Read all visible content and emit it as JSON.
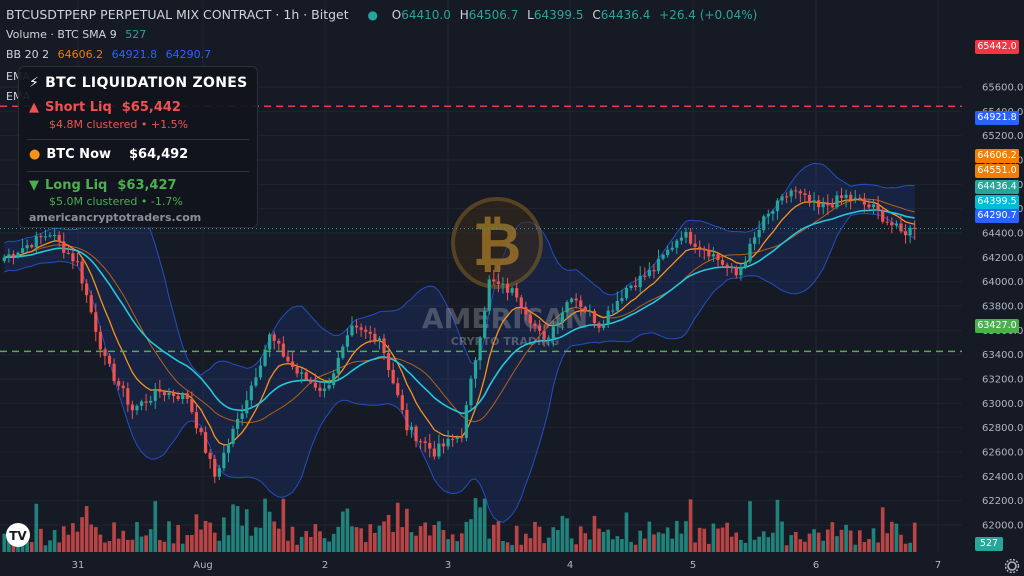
{
  "header": {
    "symbol": "BTCUSDTPERP PERPETUAL MIX CONTRACT · 1h · Bitget",
    "ohlc": {
      "o_label": "O",
      "o": "64410.0",
      "h_label": "H",
      "h": "64506.7",
      "l_label": "L",
      "l": "64399.5",
      "c_label": "C",
      "c": "64436.4",
      "chg": "+26.4 (+0.04%)"
    },
    "volume_label": "Volume · BTC  SMA 9",
    "volume_value": "527",
    "bb_label": "BB 20 2",
    "bb_values": [
      "64606.2",
      "64921.8",
      "64290.7"
    ],
    "ema1_label": "EMA",
    "ema2_label": "EMA"
  },
  "panel": {
    "title": "BTC LIQUIDATION ZONES",
    "short_label": "Short Liq",
    "short_value": "$65,442",
    "short_sub": "$4.8M clustered  •  +1.5%",
    "now_label": "BTC Now",
    "now_value": "$64,492",
    "long_label": "Long Liq",
    "long_value": "$63,427",
    "long_sub": "$5.0M clustered  •  -1.7%",
    "site": "americancryptotraders.com"
  },
  "watermark": {
    "line1": "AMERICAN",
    "line2": "CRYPTO TRADING"
  },
  "colors": {
    "bg": "#161a25",
    "up": "#26a69a",
    "down": "#ef5350",
    "bb": "#2962ff",
    "ema_fast": "#f7931a",
    "ema_slow": "#26c6da",
    "short": "#f23645",
    "long": "#4caf50"
  },
  "chart_data": {
    "type": "candlestick",
    "y_axis_ticks": [
      "65600.0",
      "65400.0",
      "65200.0",
      "65000.0",
      "64800.0",
      "64600.0",
      "64400.0",
      "64200.0",
      "64000.0",
      "63800.0",
      "63600.0",
      "63400.0",
      "63200.0",
      "63000.0",
      "62800.0",
      "62600.0",
      "62400.0",
      "62200.0",
      "62000.0"
    ],
    "ylim": [
      61900,
      65700
    ],
    "x_axis_ticks": [
      "31",
      "Aug",
      "2",
      "3",
      "4",
      "5",
      "6",
      "7"
    ],
    "price_tags": [
      {
        "label": "65442.0",
        "value": 65442,
        "color": "#f23645"
      },
      {
        "label": "64921.8",
        "value": 64921.8,
        "color": "#2962ff"
      },
      {
        "label": "64606.2",
        "value": 64606.2,
        "color": "#f57c00"
      },
      {
        "label": "64551.0",
        "value": 64551,
        "color": "#f57c00"
      },
      {
        "label": "64436.4",
        "value": 64436.4,
        "color": "#26a69a"
      },
      {
        "label": "64399.5",
        "value": 64399.5,
        "color": "#00bcd4"
      },
      {
        "label": "64290.7",
        "value": 64290.7,
        "color": "#2962ff"
      },
      {
        "label": "63427.0",
        "value": 63427,
        "color": "#4caf50"
      }
    ],
    "volume_tag": "527",
    "short_liq_level": 65442,
    "long_liq_level": 63427,
    "close_level": 64436.4,
    "anchors": [
      [
        0,
        64200
      ],
      [
        10,
        64400
      ],
      [
        16,
        64150
      ],
      [
        22,
        63350
      ],
      [
        28,
        62950
      ],
      [
        34,
        63100
      ],
      [
        40,
        63050
      ],
      [
        46,
        62400
      ],
      [
        52,
        62950
      ],
      [
        58,
        63550
      ],
      [
        64,
        63250
      ],
      [
        70,
        63100
      ],
      [
        76,
        63600
      ],
      [
        82,
        63550
      ],
      [
        88,
        62800
      ],
      [
        94,
        62600
      ],
      [
        100,
        62750
      ],
      [
        106,
        64000
      ],
      [
        112,
        63900
      ],
      [
        118,
        63500
      ],
      [
        124,
        63900
      ],
      [
        130,
        63650
      ],
      [
        136,
        63950
      ],
      [
        142,
        64100
      ],
      [
        148,
        64400
      ],
      [
        154,
        64250
      ],
      [
        160,
        64050
      ],
      [
        166,
        64500
      ],
      [
        172,
        64750
      ],
      [
        178,
        64600
      ],
      [
        184,
        64700
      ],
      [
        190,
        64600
      ],
      [
        196,
        64400
      ],
      [
        199,
        64440
      ]
    ],
    "candle_count": 200,
    "volume_max": 1000
  }
}
